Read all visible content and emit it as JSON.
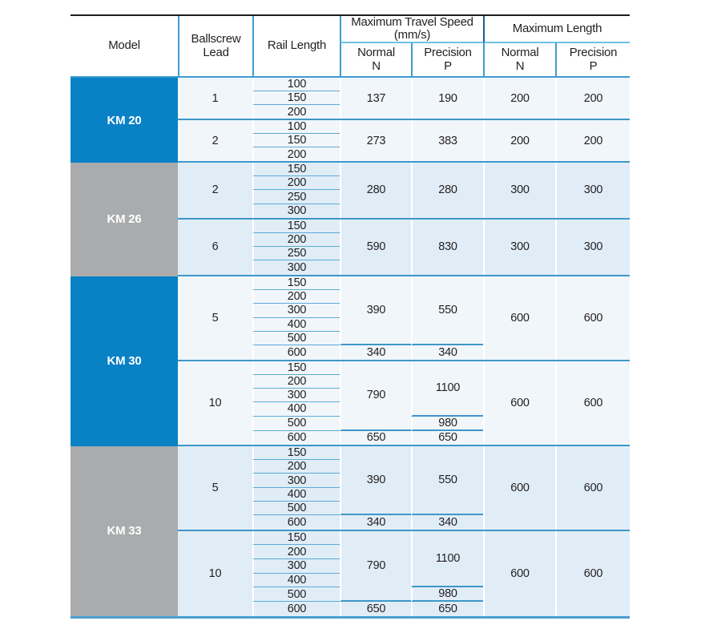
{
  "header": {
    "model": "Model",
    "ballscrew_lead": "Ballscrew Lead",
    "rail_length": "Rail Length",
    "speed_group": "Maximum Travel Speed (mm/s)",
    "length_group": "Maximum Length",
    "sub": {
      "normal": "Normal",
      "normal_code": "N",
      "precision": "Precision",
      "precision_code": "P"
    }
  },
  "colors": {
    "model_blue": "#0981c5",
    "model_gray": "#a9abad",
    "section_bg_light": "#f1f6fa",
    "section_bg_blue": "#e0edf7",
    "grid_line_blue": "#3e97c9",
    "grid_line_thin": "#5caad6",
    "top_border_black": "#1d1d1b",
    "bottom_border_blue": "#4c9fd0",
    "text": "#231f20"
  },
  "table": {
    "sections": [
      {
        "model": "KM 20",
        "tone": "blue",
        "bg": "light",
        "leads": [
          {
            "lead": "1",
            "rails": [
              "100",
              "150",
              "200"
            ],
            "normal": [
              {
                "value": "137",
                "span": 3
              }
            ],
            "precision": [
              {
                "value": "190",
                "span": 3
              }
            ],
            "max_normal": "200",
            "max_precision": "200"
          },
          {
            "lead": "2",
            "rails": [
              "100",
              "150",
              "200"
            ],
            "normal": [
              {
                "value": "273",
                "span": 3
              }
            ],
            "precision": [
              {
                "value": "383",
                "span": 3
              }
            ],
            "max_normal": "200",
            "max_precision": "200"
          }
        ]
      },
      {
        "model": "KM 26",
        "tone": "gray",
        "bg": "blue",
        "leads": [
          {
            "lead": "2",
            "rails": [
              "150",
              "200",
              "250",
              "300"
            ],
            "normal": [
              {
                "value": "280",
                "span": 4
              }
            ],
            "precision": [
              {
                "value": "280",
                "span": 4
              }
            ],
            "max_normal": "300",
            "max_precision": "300"
          },
          {
            "lead": "6",
            "rails": [
              "150",
              "200",
              "250",
              "300"
            ],
            "normal": [
              {
                "value": "590",
                "span": 4
              }
            ],
            "precision": [
              {
                "value": "830",
                "span": 4
              }
            ],
            "max_normal": "300",
            "max_precision": "300"
          }
        ]
      },
      {
        "model": "KM 30",
        "tone": "blue",
        "bg": "light",
        "leads": [
          {
            "lead": "5",
            "rails": [
              "150",
              "200",
              "300",
              "400",
              "500",
              "600"
            ],
            "normal": [
              {
                "value": "390",
                "span": 5
              },
              {
                "value": "340",
                "span": 1
              }
            ],
            "precision": [
              {
                "value": "550",
                "span": 5
              },
              {
                "value": "340",
                "span": 1
              }
            ],
            "max_normal": "600",
            "max_precision": "600"
          },
          {
            "lead": "10",
            "rails": [
              "150",
              "200",
              "300",
              "400",
              "500",
              "600"
            ],
            "normal": [
              {
                "value": "790",
                "span": 5
              },
              {
                "value": "650",
                "span": 1
              }
            ],
            "precision": [
              {
                "value": "1100",
                "span": 4
              },
              {
                "value": "980",
                "span": 1
              },
              {
                "value": "650",
                "span": 1
              }
            ],
            "max_normal": "600",
            "max_precision": "600"
          }
        ]
      },
      {
        "model": "KM 33",
        "tone": "gray",
        "bg": "blue",
        "leads": [
          {
            "lead": "5",
            "rails": [
              "150",
              "200",
              "300",
              "400",
              "500",
              "600"
            ],
            "normal": [
              {
                "value": "390",
                "span": 5
              },
              {
                "value": "340",
                "span": 1
              }
            ],
            "precision": [
              {
                "value": "550",
                "span": 5
              },
              {
                "value": "340",
                "span": 1
              }
            ],
            "max_normal": "600",
            "max_precision": "600"
          },
          {
            "lead": "10",
            "rails": [
              "150",
              "200",
              "300",
              "400",
              "500",
              "600"
            ],
            "normal": [
              {
                "value": "790",
                "span": 5
              },
              {
                "value": "650",
                "span": 1
              }
            ],
            "precision": [
              {
                "value": "1100",
                "span": 4
              },
              {
                "value": "980",
                "span": 1
              },
              {
                "value": "650",
                "span": 1
              }
            ],
            "max_normal": "600",
            "max_precision": "600"
          }
        ]
      }
    ]
  }
}
